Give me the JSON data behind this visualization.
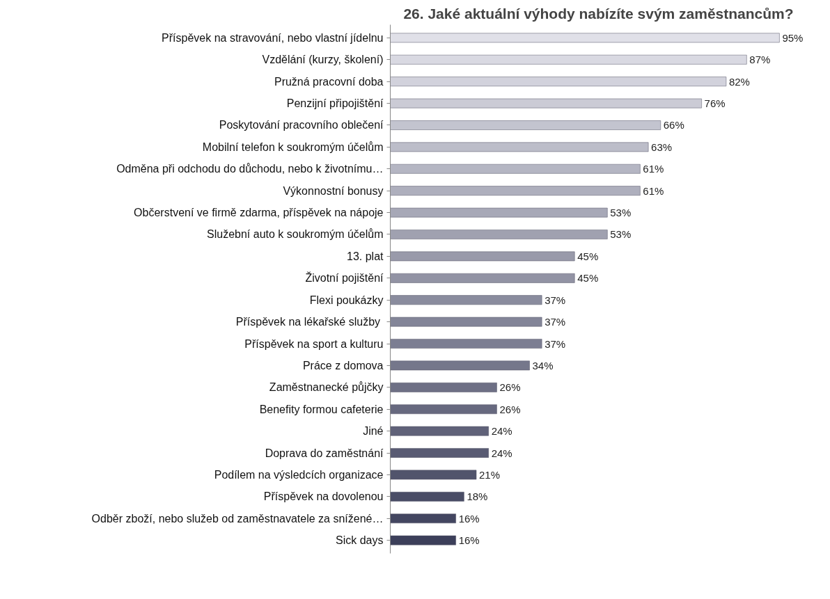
{
  "chart_data": {
    "type": "bar",
    "orientation": "horizontal",
    "title": "26. Jaké aktuální výhody nabízíte svým zaměstnancům?",
    "categories": [
      "Příspěvek na stravování, nebo vlastní jídelnu",
      "Vzdělání (kurzy, školení)",
      "Pružná pracovní doba",
      "Penzijní připojištění",
      "Poskytování pracovního oblečení",
      "Mobilní telefon k soukromým účelům",
      "Odměna při odchodu do důchodu, nebo k životnímu…",
      "Výkonnostní bonusy",
      "Občerstvení ve firmě zdarma, příspěvek na nápoje",
      "Služební auto k soukromým účelům",
      "13. plat",
      "Životní pojištění",
      "Flexi poukázky",
      "Příspěvek na lékařské služby ",
      "Příspěvek na sport a kulturu",
      "Práce z domova",
      "Zaměstnanecké půjčky",
      "Benefity formou cafeterie",
      "Jiné",
      "Doprava do zaměstnání",
      "Podílem na výsledcích organizace",
      "Příspěvek na dovolenou",
      "Odběr zboží, nebo služeb od zaměstnavatele za snížené…",
      "Sick days"
    ],
    "values": [
      95,
      87,
      82,
      76,
      66,
      63,
      61,
      61,
      53,
      53,
      45,
      45,
      37,
      37,
      37,
      34,
      26,
      26,
      24,
      24,
      21,
      18,
      16,
      16
    ],
    "value_labels": [
      "95%",
      "87%",
      "82%",
      "76%",
      "66%",
      "63%",
      "61%",
      "61%",
      "53%",
      "53%",
      "45%",
      "45%",
      "37%",
      "37%",
      "37%",
      "34%",
      "26%",
      "26%",
      "24%",
      "24%",
      "21%",
      "18%",
      "16%",
      "16%"
    ],
    "colors": [
      "#e0e0e8",
      "#d9d9e2",
      "#d2d2dc",
      "#cbcbd5",
      "#c3c4cf",
      "#bcbdc9",
      "#b5b6c3",
      "#aeafbd",
      "#a7a8b7",
      "#a0a1b0",
      "#999aaa",
      "#9293a4",
      "#8a8c9e",
      "#838598",
      "#7c7e92",
      "#75778b",
      "#6e7085",
      "#67697f",
      "#606279",
      "#595b73",
      "#51546c",
      "#4a4d66",
      "#434660",
      "#3c3f5a"
    ],
    "tick_labels": "y",
    "grid": false
  }
}
